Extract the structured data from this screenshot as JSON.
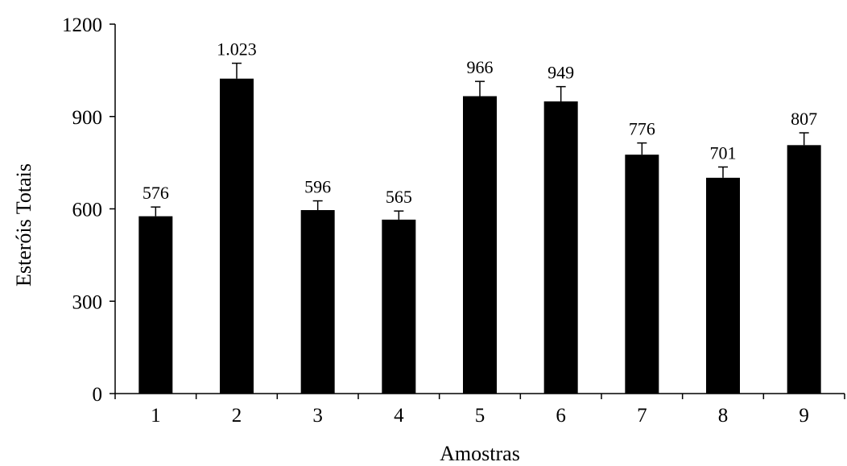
{
  "chart_data": {
    "type": "bar",
    "categories": [
      "1",
      "2",
      "3",
      "4",
      "5",
      "6",
      "7",
      "8",
      "9"
    ],
    "values": [
      576,
      1023,
      596,
      565,
      966,
      949,
      776,
      701,
      807
    ],
    "data_labels": [
      "576",
      "1.023",
      "596",
      "565",
      "966",
      "949",
      "776",
      "701",
      "807"
    ],
    "error": [
      30,
      50,
      30,
      28,
      48,
      48,
      38,
      35,
      40
    ],
    "xlabel": "Amostras",
    "ylabel": "Esteróis Totais",
    "ylim": [
      0,
      1200
    ],
    "yticks": [
      0,
      300,
      600,
      900,
      1200
    ],
    "grid": false,
    "legend": "none",
    "bar_color": "#000000"
  }
}
